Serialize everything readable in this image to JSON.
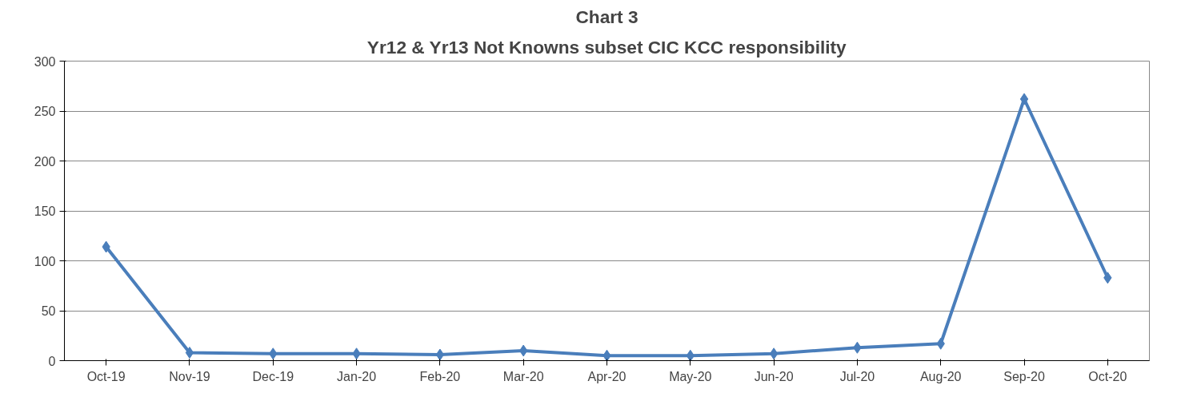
{
  "chart_data": {
    "type": "line",
    "title": "Chart 3",
    "subtitle": "Yr12 & Yr13 Not Knowns subset CIC KCC responsibility",
    "categories": [
      "Oct-19",
      "Nov-19",
      "Dec-19",
      "Jan-20",
      "Feb-20",
      "Mar-20",
      "Apr-20",
      "May-20",
      "Jun-20",
      "Jul-20",
      "Aug-20",
      "Sep-20",
      "Oct-20"
    ],
    "series": [
      {
        "color": "#4a7ebb",
        "values": [
          114,
          8,
          7,
          7,
          6,
          10,
          5,
          5,
          7,
          13,
          17,
          262,
          83
        ]
      }
    ],
    "ylim": [
      0,
      300
    ],
    "yticks": [
      0,
      50,
      100,
      150,
      200,
      250,
      300
    ],
    "grid": "y",
    "marker": "diamond",
    "line_style": "solid"
  }
}
